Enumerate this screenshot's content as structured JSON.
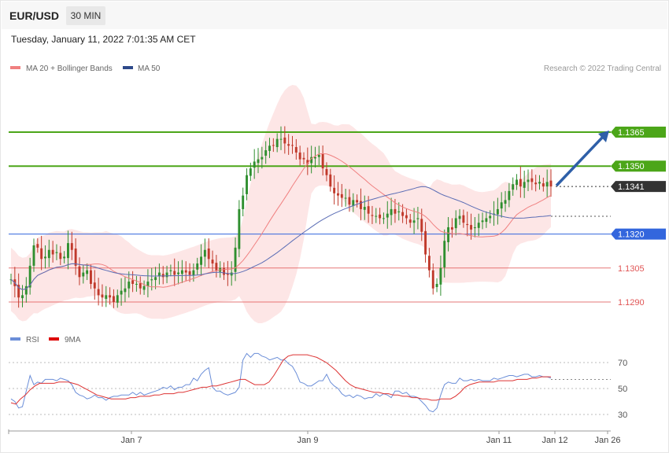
{
  "header": {
    "symbol": "EUR/USD",
    "timeframe": "30 MIN",
    "datetime": "Tuesday, January 11, 2022 7:01:35 AM CET"
  },
  "legend": {
    "ma20_label": "MA 20 + Bollinger Bands",
    "ma50_label": "MA 50",
    "research": "Research © 2022 Trading Central",
    "rsi_label": "RSI",
    "rsi_ma_label": "9MA"
  },
  "colors": {
    "up_candle": "#2f8f2f",
    "down_candle": "#c0392b",
    "bollinger_fill": "#fde2e2",
    "ma20": "#f08080",
    "ma50": "#5b6db5",
    "resistance": "#4ca619",
    "pivot": "#3366dd",
    "support": "#e05555",
    "current": "#333333",
    "rsi": "#6b8ed8",
    "rsi_ma": "#dd3333"
  },
  "chart_data": [
    {
      "type": "candlestick",
      "price_axis": {
        "min": 1.1275,
        "max": 1.1375
      },
      "levels": [
        {
          "label": "1.1365",
          "value": 1.1365,
          "kind": "resistance"
        },
        {
          "label": "1.1350",
          "value": 1.135,
          "kind": "resistance"
        },
        {
          "label": "1.1341",
          "value": 1.1341,
          "kind": "current"
        },
        {
          "label": "1.1320",
          "value": 1.132,
          "kind": "pivot"
        },
        {
          "label": "1.1305",
          "value": 1.1305,
          "kind": "support"
        },
        {
          "label": "1.1290",
          "value": 1.129,
          "kind": "support"
        }
      ],
      "x_ticks": [
        "Jan 7",
        "Jan 9",
        "Jan 11",
        "Jan 12",
        "Jan 26"
      ],
      "close_path": [
        1.13,
        1.1297,
        1.1292,
        1.1293,
        1.1297,
        1.1306,
        1.1315,
        1.1314,
        1.1309,
        1.131,
        1.1313,
        1.1311,
        1.1312,
        1.1309,
        1.131,
        1.1316,
        1.1313,
        1.1306,
        1.1301,
        1.1303,
        1.1304,
        1.1298,
        1.1296,
        1.1293,
        1.1292,
        1.1293,
        1.1292,
        1.129,
        1.1293,
        1.1295,
        1.1296,
        1.1299,
        1.1298,
        1.1298,
        1.1296,
        1.1297,
        1.1299,
        1.13,
        1.1301,
        1.1303,
        1.1301,
        1.1303,
        1.1304,
        1.1302,
        1.1303,
        1.1304,
        1.1303,
        1.1302,
        1.1304,
        1.1307,
        1.131,
        1.1313,
        1.1309,
        1.1307,
        1.1304,
        1.1305,
        1.1302,
        1.1302,
        1.1303,
        1.1314,
        1.1331,
        1.1337,
        1.1346,
        1.1349,
        1.1352,
        1.1353,
        1.1354,
        1.1357,
        1.1359,
        1.1359,
        1.1362,
        1.1362,
        1.136,
        1.1359,
        1.1359,
        1.1356,
        1.1353,
        1.1353,
        1.1351,
        1.1354,
        1.1354,
        1.1355,
        1.1349,
        1.1346,
        1.1341,
        1.1338,
        1.1337,
        1.1336,
        1.1336,
        1.1333,
        1.1335,
        1.1334,
        1.1331,
        1.1332,
        1.1329,
        1.1328,
        1.1328,
        1.1327,
        1.1327,
        1.1329,
        1.1331,
        1.1329,
        1.133,
        1.1328,
        1.1327,
        1.1325,
        1.1326,
        1.1327,
        1.1321,
        1.1311,
        1.1304,
        1.1296,
        1.1298,
        1.1305,
        1.1317,
        1.1323,
        1.1322,
        1.1327,
        1.1328,
        1.1325,
        1.1324,
        1.1322,
        1.1323,
        1.1325,
        1.1326,
        1.1327,
        1.1328,
        1.1329,
        1.1331,
        1.1334,
        1.1335,
        1.1339,
        1.1342,
        1.1344,
        1.1341,
        1.1343,
        1.1344,
        1.1343,
        1.1342,
        1.1343,
        1.1341,
        1.1343,
        1.1341
      ],
      "rsi": {
        "axis": {
          "min": 20,
          "max": 80
        },
        "ticks": [
          "70",
          "50",
          "30"
        ],
        "rsi_path": [
          42,
          40,
          35,
          36,
          48,
          60,
          53,
          55,
          54,
          57,
          57,
          57,
          56,
          58,
          57,
          56,
          53,
          47,
          45,
          44,
          42,
          43,
          45,
          43,
          43,
          41,
          43,
          44,
          44,
          45,
          45,
          45,
          47,
          45,
          47,
          45,
          46,
          47,
          48,
          49,
          51,
          50,
          52,
          49,
          51,
          51,
          53,
          53,
          58,
          56,
          61,
          64,
          66,
          51,
          48,
          48,
          46,
          45,
          46,
          47,
          51,
          72,
          77,
          74,
          77,
          77,
          75,
          74,
          72,
          73,
          74,
          72,
          72,
          69,
          67,
          62,
          55,
          54,
          52,
          52,
          54,
          56,
          56,
          61,
          55,
          52,
          50,
          46,
          44,
          45,
          43,
          45,
          44,
          42,
          43,
          43,
          46,
          44,
          46,
          45,
          43,
          48,
          48,
          46,
          47,
          44,
          44,
          43,
          40,
          37,
          33,
          32,
          35,
          45,
          53,
          55,
          54,
          54,
          58,
          56,
          56,
          57,
          56,
          57,
          56,
          56,
          56,
          58,
          57,
          58,
          59,
          60,
          60,
          59,
          60,
          61,
          61,
          59,
          59,
          60,
          59,
          59,
          58
        ],
        "rsi_ma_path": [
          39,
          38,
          42,
          45,
          49,
          52,
          54,
          54,
          54,
          54,
          55,
          55,
          55,
          54,
          53,
          51,
          49,
          47,
          45,
          44,
          43,
          42,
          42,
          42,
          42,
          43,
          43,
          44,
          44,
          44,
          45,
          45,
          46,
          46,
          46,
          47,
          47,
          48,
          49,
          50,
          51,
          51,
          52,
          52,
          53,
          54,
          55,
          56,
          57,
          57,
          55,
          53,
          53,
          53,
          55,
          60,
          66,
          72,
          75,
          76,
          76,
          76,
          76,
          75,
          74,
          72,
          70,
          67,
          64,
          60,
          56,
          53,
          51,
          50,
          49,
          48,
          47,
          47,
          46,
          46,
          45,
          45,
          44,
          44,
          43,
          43,
          42,
          42,
          41,
          41,
          42,
          42,
          42,
          44,
          47,
          51,
          53,
          54,
          55,
          55,
          55,
          55,
          56,
          56,
          56,
          56,
          57,
          57,
          57,
          58,
          58,
          59,
          59,
          59
        ]
      }
    }
  ]
}
